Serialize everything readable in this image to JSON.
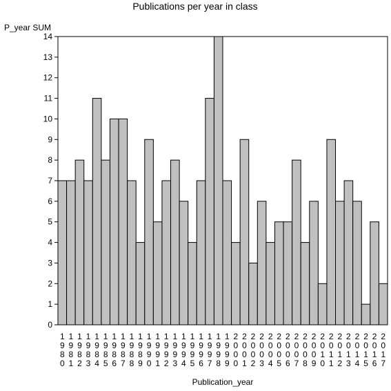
{
  "chart_data": {
    "type": "bar",
    "title": "Publications per year in class",
    "ylabel": "P_year SUM",
    "xlabel": "Publication_year",
    "ylim": [
      0,
      14
    ],
    "yticks": [
      0,
      1,
      2,
      3,
      4,
      5,
      6,
      7,
      8,
      9,
      10,
      11,
      12,
      13,
      14
    ],
    "grid": false,
    "bar_color": "#c0c0c0",
    "bar_edge_color": "#000000",
    "categories": [
      "1980",
      "1981",
      "1982",
      "1983",
      "1984",
      "1985",
      "1986",
      "1987",
      "1988",
      "1989",
      "1990",
      "1991",
      "1992",
      "1993",
      "1994",
      "1995",
      "1996",
      "1997",
      "1998",
      "1999",
      "2000",
      "2001",
      "2002",
      "2003",
      "2004",
      "2005",
      "2006",
      "2007",
      "2008",
      "2009",
      "2010",
      "2011",
      "2012",
      "2013",
      "2014",
      "2015",
      "2016",
      "2017"
    ],
    "values": [
      7,
      7,
      8,
      7,
      11,
      8,
      10,
      10,
      7,
      4,
      9,
      5,
      7,
      8,
      6,
      4,
      7,
      11,
      14,
      7,
      4,
      9,
      3,
      6,
      4,
      5,
      5,
      8,
      4,
      6,
      2,
      9,
      6,
      7,
      6,
      1,
      5,
      2
    ]
  }
}
